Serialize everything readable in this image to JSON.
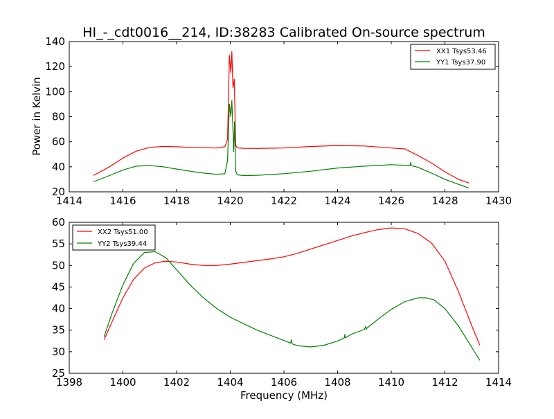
{
  "chart_data": [
    {
      "type": "line",
      "title": "HI_-_cdt0016__214, ID:38283 Calibrated On-source spectrum",
      "xlabel": "",
      "ylabel": "Power in Kelvin",
      "xlim": [
        1414,
        1430
      ],
      "ylim": [
        20,
        140
      ],
      "xticks": [
        1414,
        1416,
        1418,
        1420,
        1422,
        1424,
        1426,
        1428,
        1430
      ],
      "yticks": [
        20,
        40,
        60,
        80,
        100,
        120,
        140
      ],
      "grid": false,
      "legend": "top-right",
      "series": [
        {
          "name": "XX1 Tsys53.46",
          "color": "#ff0000",
          "x": [
            1414.9,
            1415.5,
            1416.0,
            1416.5,
            1417.0,
            1417.5,
            1418.0,
            1418.5,
            1419.0,
            1419.5,
            1419.8,
            1419.9,
            1419.97,
            1420.02,
            1420.06,
            1420.1,
            1420.15,
            1420.2,
            1420.25,
            1420.3,
            1420.5,
            1421.0,
            1422.0,
            1423.0,
            1424.0,
            1425.0,
            1426.0,
            1426.5,
            1427.0,
            1427.5,
            1428.0,
            1428.5,
            1428.9
          ],
          "values": [
            33,
            40,
            47,
            52.5,
            55.5,
            56.2,
            56.0,
            55.5,
            55.2,
            55.0,
            56,
            62,
            129,
            115,
            132,
            103,
            110,
            57,
            55.5,
            55.0,
            54.8,
            54.7,
            55.0,
            56.2,
            57.0,
            56.6,
            55.0,
            54.3,
            49,
            43,
            36,
            30,
            27
          ]
        },
        {
          "name": "YY1 Tsys37.90",
          "color": "#008000",
          "x": [
            1414.9,
            1415.5,
            1416.0,
            1416.5,
            1417.0,
            1417.5,
            1418.0,
            1418.5,
            1419.0,
            1419.5,
            1419.8,
            1419.9,
            1419.97,
            1420.02,
            1420.06,
            1420.1,
            1420.13,
            1420.16,
            1420.2,
            1420.25,
            1420.3,
            1420.5,
            1421.0,
            1422.0,
            1423.0,
            1424.0,
            1425.0,
            1426.0,
            1426.7,
            1426.72,
            1426.74,
            1427.0,
            1427.5,
            1428.0,
            1428.5,
            1428.9
          ],
          "values": [
            28,
            33,
            37.5,
            40.5,
            41.0,
            40.0,
            38.2,
            36.5,
            35.0,
            34.0,
            34.5,
            45,
            90,
            80,
            93,
            70,
            52,
            76,
            37,
            34,
            33.5,
            33.0,
            33.2,
            34.5,
            36.5,
            39.0,
            40.5,
            41.7,
            41.0,
            43.5,
            41.0,
            39.5,
            35,
            30,
            26,
            23
          ]
        }
      ]
    },
    {
      "type": "line",
      "title": "",
      "xlabel": "Frequency (MHz)",
      "ylabel": "",
      "xlim": [
        1398,
        1414
      ],
      "ylim": [
        25,
        60
      ],
      "xticks": [
        1398,
        1400,
        1402,
        1404,
        1406,
        1408,
        1410,
        1412,
        1414
      ],
      "yticks": [
        25,
        30,
        35,
        40,
        45,
        50,
        55,
        60
      ],
      "grid": false,
      "legend": "top-left",
      "series": [
        {
          "name": "XX2 Tsys51.00",
          "color": "#ff0000",
          "x": [
            1399.3,
            1399.6,
            1400.0,
            1400.4,
            1400.8,
            1401.2,
            1401.6,
            1402.0,
            1402.5,
            1403.0,
            1403.5,
            1404.0,
            1404.5,
            1405.0,
            1405.5,
            1406.0,
            1406.5,
            1407.0,
            1407.5,
            1408.0,
            1408.5,
            1409.0,
            1409.5,
            1410.0,
            1410.5,
            1411.0,
            1411.5,
            1412.0,
            1412.5,
            1413.0,
            1413.3
          ],
          "values": [
            32.8,
            37,
            42.5,
            46.8,
            49.4,
            50.6,
            51.0,
            50.8,
            50.3,
            50.0,
            50.0,
            50.3,
            50.7,
            51.1,
            51.5,
            52.0,
            52.8,
            53.8,
            54.8,
            55.8,
            56.8,
            57.6,
            58.3,
            58.7,
            58.5,
            57.4,
            55.2,
            51.0,
            44.0,
            36.0,
            31.5
          ]
        },
        {
          "name": "YY2 Tsys39.44",
          "color": "#008000",
          "x": [
            1399.3,
            1399.6,
            1400.0,
            1400.4,
            1400.8,
            1401.2,
            1401.6,
            1402.0,
            1402.5,
            1403.0,
            1403.5,
            1404.0,
            1404.5,
            1405.0,
            1405.5,
            1406.0,
            1406.25,
            1406.28,
            1406.31,
            1406.5,
            1407.0,
            1407.5,
            1408.0,
            1408.25,
            1408.27,
            1408.29,
            1408.5,
            1409.0,
            1409.05,
            1409.07,
            1409.1,
            1409.5,
            1410.0,
            1410.5,
            1411.0,
            1411.3,
            1411.6,
            1412.0,
            1412.5,
            1413.0,
            1413.3
          ],
          "values": [
            33.5,
            39,
            45.5,
            50.5,
            53.0,
            53.2,
            51.8,
            49.0,
            45.5,
            42.5,
            40.0,
            38.0,
            36.5,
            35.0,
            33.8,
            32.6,
            32.0,
            32.8,
            31.8,
            31.4,
            31.1,
            31.5,
            32.5,
            33.2,
            34.0,
            33.2,
            34.0,
            35.2,
            35.9,
            35.2,
            35.5,
            37.5,
            39.8,
            41.6,
            42.5,
            42.5,
            42.0,
            40.0,
            36.0,
            31.0,
            28.0
          ]
        }
      ]
    }
  ]
}
